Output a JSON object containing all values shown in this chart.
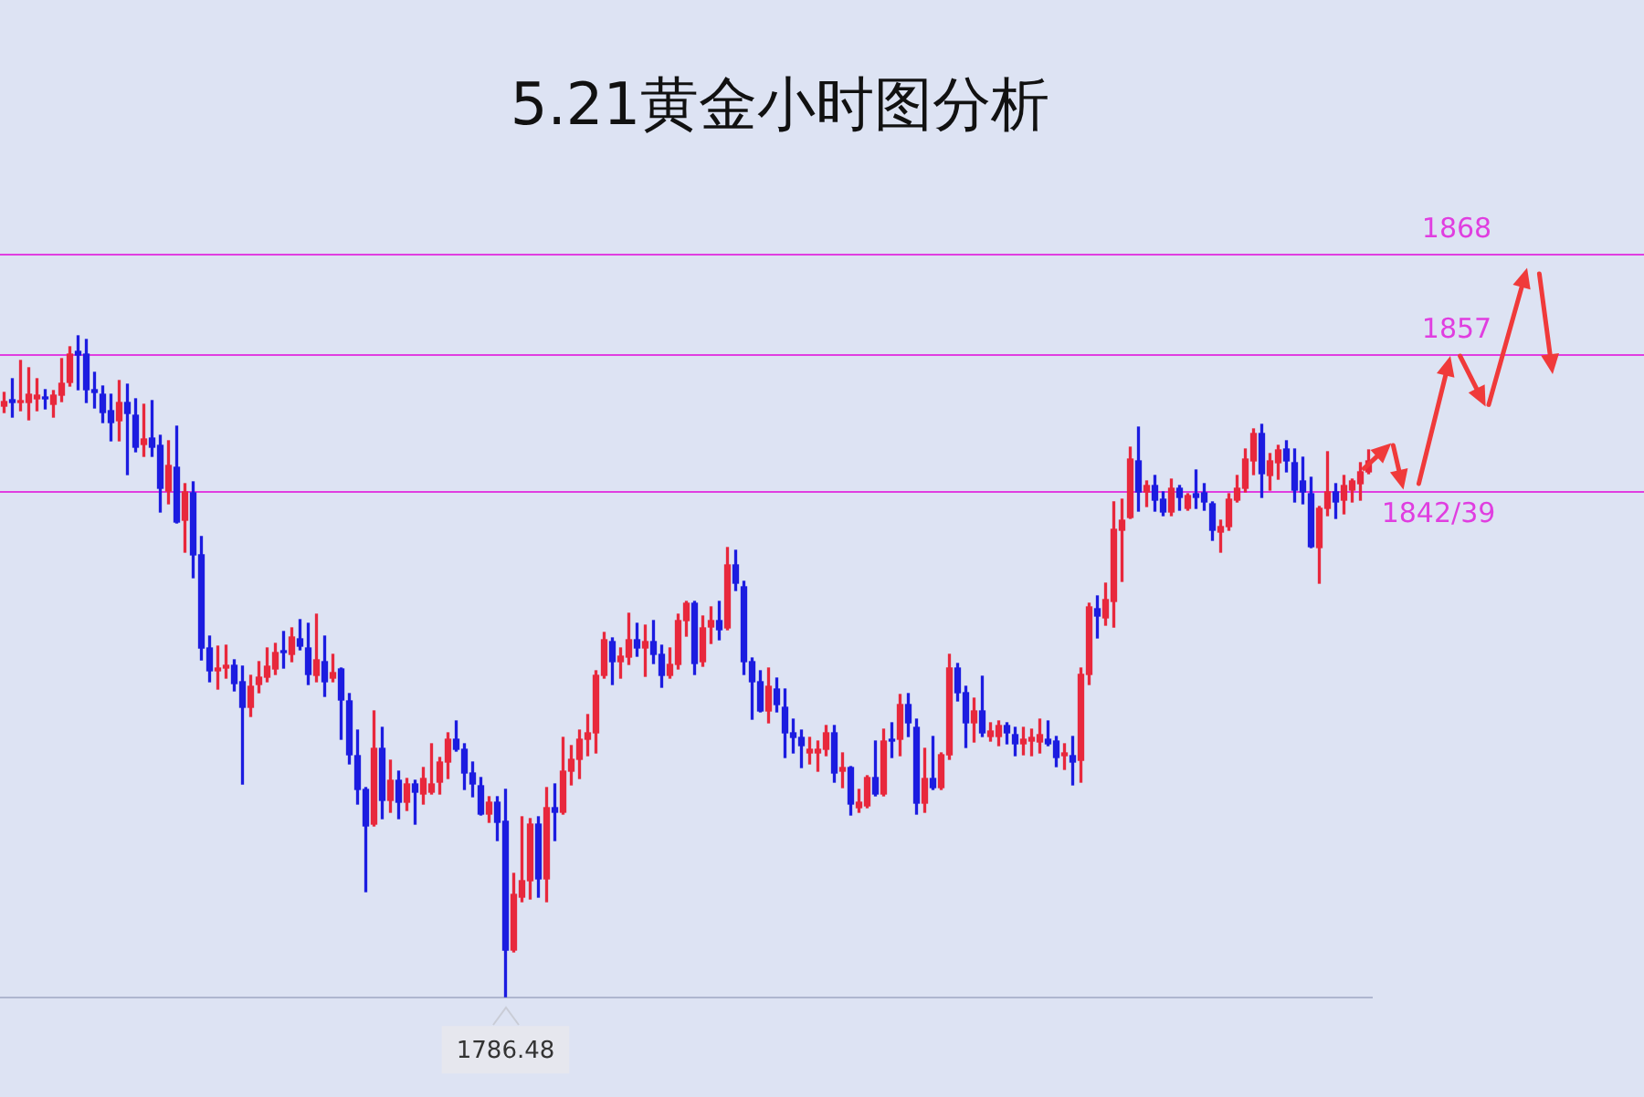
{
  "chart_data": {
    "type": "candlestick",
    "title": "5.21黄金小时图分析",
    "categories": [
      null,
      null,
      null,
      null,
      null,
      null,
      null,
      null,
      null,
      null,
      null,
      null,
      null,
      null,
      null,
      null,
      null,
      null,
      null,
      null,
      null,
      null,
      null,
      null,
      null,
      null,
      null,
      null,
      null,
      null,
      null,
      null,
      null,
      null,
      null,
      null,
      null,
      null,
      null,
      null,
      null,
      null,
      null,
      null,
      null,
      null,
      null,
      null,
      null,
      null,
      null,
      null,
      null,
      null,
      null,
      null,
      null,
      null,
      null,
      null,
      null,
      null,
      null,
      null,
      null,
      null,
      null,
      null,
      null,
      null,
      null,
      null,
      null,
      null,
      null,
      null,
      null,
      null,
      null,
      null,
      null,
      null,
      null,
      null,
      null,
      null,
      null,
      null,
      null,
      null,
      null,
      null,
      null,
      null,
      null,
      null,
      null,
      null,
      null,
      null,
      null,
      null,
      null,
      null,
      null,
      null,
      null,
      null,
      null,
      null,
      null,
      null,
      null,
      null,
      null,
      null,
      null,
      null,
      null,
      null,
      null,
      null,
      null,
      null,
      null,
      null,
      null,
      null,
      null,
      null,
      null,
      null,
      null,
      null,
      null,
      null,
      null,
      null,
      null,
      null,
      null,
      null,
      null,
      null,
      null,
      null,
      null,
      null,
      null,
      null,
      null,
      null,
      null,
      null,
      null,
      null,
      null,
      null,
      null,
      null,
      null,
      null,
      null,
      null,
      null,
      null,
      null
    ],
    "ohlc": [
      [
        1851.2,
        1852.7,
        1850.5,
        1851.7
      ],
      [
        1851.9,
        1854.2,
        1850.0,
        1851.6
      ],
      [
        1851.6,
        1856.2,
        1850.7,
        1851.8
      ],
      [
        1851.6,
        1855.4,
        1849.7,
        1852.5
      ],
      [
        1852.0,
        1854.2,
        1850.7,
        1852.4
      ],
      [
        1852.2,
        1853.0,
        1850.9,
        1852.0
      ],
      [
        1851.4,
        1852.9,
        1850.0,
        1852.4
      ],
      [
        1852.4,
        1856.4,
        1851.7,
        1853.7
      ],
      [
        1853.8,
        1857.7,
        1853.4,
        1856.9
      ],
      [
        1857.2,
        1858.9,
        1853.0,
        1856.8
      ],
      [
        1856.9,
        1858.5,
        1851.6,
        1853.0
      ],
      [
        1853.0,
        1854.9,
        1851.0,
        1852.7
      ],
      [
        1852.5,
        1853.4,
        1849.4,
        1850.5
      ],
      [
        1850.7,
        1852.5,
        1847.4,
        1849.4
      ],
      [
        1849.6,
        1854.0,
        1847.4,
        1851.6
      ],
      [
        1851.6,
        1853.6,
        1843.7,
        1850.4
      ],
      [
        1850.2,
        1852.0,
        1846.2,
        1846.7
      ],
      [
        1847.0,
        1851.4,
        1845.7,
        1847.6
      ],
      [
        1847.7,
        1851.8,
        1845.7,
        1846.7
      ],
      [
        1846.9,
        1848.0,
        1839.6,
        1842.2
      ],
      [
        1841.9,
        1847.4,
        1840.5,
        1844.7
      ],
      [
        1844.5,
        1849.0,
        1838.4,
        1838.5
      ],
      [
        1838.7,
        1842.7,
        1835.2,
        1841.8
      ],
      [
        1841.7,
        1842.9,
        1832.4,
        1834.9
      ],
      [
        1834.9,
        1836.9,
        1823.4,
        1824.7
      ],
      [
        1824.7,
        1826.0,
        1821.0,
        1822.2
      ],
      [
        1822.2,
        1824.9,
        1820.2,
        1822.5
      ],
      [
        1822.5,
        1825.0,
        1821.4,
        1822.8
      ],
      [
        1822.8,
        1823.4,
        1820.0,
        1820.8
      ],
      [
        1821.0,
        1822.7,
        1809.8,
        1818.2
      ],
      [
        1818.2,
        1821.7,
        1817.2,
        1820.5
      ],
      [
        1820.7,
        1823.2,
        1819.8,
        1821.5
      ],
      [
        1821.5,
        1824.7,
        1821.0,
        1822.7
      ],
      [
        1822.4,
        1825.2,
        1821.8,
        1824.2
      ],
      [
        1824.4,
        1826.5,
        1822.5,
        1824.2
      ],
      [
        1824.0,
        1826.9,
        1823.2,
        1825.9
      ],
      [
        1825.7,
        1827.8,
        1824.5,
        1824.9
      ],
      [
        1824.7,
        1827.4,
        1820.7,
        1821.8
      ],
      [
        1821.7,
        1828.4,
        1821.0,
        1823.4
      ],
      [
        1823.2,
        1826.0,
        1819.4,
        1821.0
      ],
      [
        1821.4,
        1824.0,
        1821.0,
        1822.0
      ],
      [
        1822.4,
        1822.5,
        1814.7,
        1819.0
      ],
      [
        1818.9,
        1819.7,
        1812.0,
        1813.0
      ],
      [
        1812.9,
        1815.7,
        1807.6,
        1809.2
      ],
      [
        1809.2,
        1809.4,
        1798.0,
        1805.2
      ],
      [
        1805.4,
        1817.8,
        1805.2,
        1813.7
      ],
      [
        1813.7,
        1816.0,
        1806.0,
        1808.0
      ],
      [
        1808.0,
        1812.4,
        1806.7,
        1810.2
      ],
      [
        1810.2,
        1811.2,
        1806.0,
        1807.8
      ],
      [
        1807.8,
        1810.4,
        1806.9,
        1809.8
      ],
      [
        1809.8,
        1810.2,
        1805.4,
        1808.9
      ],
      [
        1808.7,
        1811.6,
        1807.6,
        1810.4
      ],
      [
        1808.9,
        1814.2,
        1808.7,
        1809.8
      ],
      [
        1810.0,
        1812.7,
        1808.7,
        1812.2
      ],
      [
        1812.2,
        1815.4,
        1810.4,
        1814.7
      ],
      [
        1814.7,
        1816.7,
        1813.4,
        1813.6
      ],
      [
        1813.6,
        1814.2,
        1809.2,
        1811.0
      ],
      [
        1811.0,
        1812.2,
        1808.4,
        1809.8
      ],
      [
        1809.6,
        1810.5,
        1806.4,
        1806.5
      ],
      [
        1806.5,
        1808.4,
        1805.6,
        1807.8
      ],
      [
        1807.8,
        1808.4,
        1803.6,
        1805.6
      ],
      [
        1805.7,
        1809.2,
        1786.48,
        1791.6
      ],
      [
        1791.6,
        1800.0,
        1791.4,
        1797.7
      ],
      [
        1797.4,
        1806.2,
        1796.9,
        1799.2
      ],
      [
        1799.2,
        1806.0,
        1797.2,
        1805.4
      ],
      [
        1805.4,
        1806.2,
        1797.4,
        1799.4
      ],
      [
        1799.4,
        1809.4,
        1796.9,
        1807.2
      ],
      [
        1807.2,
        1809.8,
        1803.6,
        1806.7
      ],
      [
        1806.7,
        1814.9,
        1806.5,
        1811.2
      ],
      [
        1811.2,
        1814.0,
        1809.7,
        1812.5
      ],
      [
        1812.5,
        1815.7,
        1810.4,
        1814.7
      ],
      [
        1814.7,
        1817.4,
        1812.9,
        1815.4
      ],
      [
        1815.4,
        1822.2,
        1813.2,
        1821.7
      ],
      [
        1821.7,
        1826.4,
        1821.4,
        1825.6
      ],
      [
        1825.4,
        1825.8,
        1820.7,
        1823.2
      ],
      [
        1823.2,
        1824.7,
        1821.4,
        1823.8
      ],
      [
        1823.7,
        1828.5,
        1822.9,
        1825.6
      ],
      [
        1825.6,
        1827.4,
        1823.8,
        1824.7
      ],
      [
        1824.7,
        1827.2,
        1821.6,
        1825.4
      ],
      [
        1825.4,
        1827.7,
        1823.0,
        1824.0
      ],
      [
        1824.0,
        1825.0,
        1820.4,
        1821.7
      ],
      [
        1821.7,
        1824.7,
        1821.4,
        1822.9
      ],
      [
        1822.9,
        1828.4,
        1822.4,
        1827.7
      ],
      [
        1827.7,
        1829.8,
        1826.0,
        1829.6
      ],
      [
        1829.6,
        1829.8,
        1821.8,
        1823.0
      ],
      [
        1823.2,
        1828.2,
        1822.7,
        1826.9
      ],
      [
        1827.0,
        1829.2,
        1825.2,
        1827.7
      ],
      [
        1827.7,
        1829.8,
        1825.6,
        1826.7
      ],
      [
        1826.9,
        1835.7,
        1826.7,
        1833.8
      ],
      [
        1833.8,
        1835.4,
        1831.0,
        1831.8
      ],
      [
        1831.4,
        1832.0,
        1821.8,
        1823.2
      ],
      [
        1823.2,
        1823.6,
        1816.9,
        1821.0
      ],
      [
        1821.0,
        1822.2,
        1817.7,
        1817.8
      ],
      [
        1817.8,
        1822.5,
        1816.5,
        1820.5
      ],
      [
        1820.2,
        1821.4,
        1817.7,
        1818.5
      ],
      [
        1818.2,
        1820.2,
        1812.7,
        1815.4
      ],
      [
        1815.4,
        1816.9,
        1813.2,
        1814.9
      ],
      [
        1814.9,
        1815.7,
        1811.6,
        1814.0
      ],
      [
        1813.2,
        1814.9,
        1812.0,
        1813.6
      ],
      [
        1813.2,
        1814.5,
        1811.2,
        1813.6
      ],
      [
        1813.6,
        1816.2,
        1812.9,
        1815.4
      ],
      [
        1815.4,
        1816.2,
        1810.0,
        1811.0
      ],
      [
        1811.2,
        1813.2,
        1809.4,
        1811.6
      ],
      [
        1811.6,
        1811.7,
        1806.4,
        1807.6
      ],
      [
        1807.2,
        1809.2,
        1806.7,
        1807.8
      ],
      [
        1807.4,
        1810.7,
        1807.2,
        1810.5
      ],
      [
        1810.5,
        1814.5,
        1808.5,
        1808.7
      ],
      [
        1808.7,
        1815.8,
        1808.5,
        1814.5
      ],
      [
        1814.7,
        1816.5,
        1812.7,
        1814.5
      ],
      [
        1814.7,
        1819.6,
        1812.9,
        1818.5
      ],
      [
        1818.5,
        1819.7,
        1815.0,
        1816.5
      ],
      [
        1816.0,
        1816.9,
        1806.5,
        1807.7
      ],
      [
        1807.7,
        1813.7,
        1806.7,
        1810.4
      ],
      [
        1810.4,
        1815.0,
        1809.2,
        1809.4
      ],
      [
        1809.4,
        1813.2,
        1809.2,
        1813.0
      ],
      [
        1813.0,
        1824.0,
        1812.5,
        1822.5
      ],
      [
        1822.5,
        1823.0,
        1818.9,
        1819.8
      ],
      [
        1819.8,
        1820.5,
        1813.8,
        1816.5
      ],
      [
        1816.5,
        1819.2,
        1814.4,
        1817.8
      ],
      [
        1817.8,
        1821.6,
        1815.0,
        1815.4
      ],
      [
        1815.0,
        1816.5,
        1814.5,
        1815.6
      ],
      [
        1815.0,
        1816.7,
        1814.0,
        1816.2
      ],
      [
        1816.2,
        1816.5,
        1814.2,
        1815.4
      ],
      [
        1815.2,
        1816.0,
        1812.9,
        1814.2
      ],
      [
        1814.2,
        1816.0,
        1813.0,
        1814.7
      ],
      [
        1814.5,
        1815.8,
        1812.9,
        1814.9
      ],
      [
        1814.4,
        1816.9,
        1813.2,
        1815.2
      ],
      [
        1814.7,
        1816.7,
        1814.0,
        1814.2
      ],
      [
        1814.5,
        1815.0,
        1811.7,
        1812.7
      ],
      [
        1812.9,
        1814.2,
        1811.4,
        1813.2
      ],
      [
        1812.9,
        1815.0,
        1809.7,
        1812.2
      ],
      [
        1812.4,
        1822.5,
        1810.0,
        1821.8
      ],
      [
        1821.8,
        1829.6,
        1820.7,
        1829.2
      ],
      [
        1829.0,
        1830.4,
        1825.8,
        1828.2
      ],
      [
        1828.0,
        1831.8,
        1827.2,
        1830.0
      ],
      [
        1829.8,
        1840.7,
        1827.0,
        1837.7
      ],
      [
        1837.6,
        1841.0,
        1832.0,
        1838.7
      ],
      [
        1839.0,
        1846.7,
        1838.9,
        1845.4
      ],
      [
        1845.2,
        1848.9,
        1839.7,
        1841.8
      ],
      [
        1841.8,
        1843.0,
        1840.2,
        1842.5
      ],
      [
        1842.5,
        1843.6,
        1839.7,
        1840.9
      ],
      [
        1841.0,
        1841.8,
        1839.2,
        1839.6
      ],
      [
        1839.6,
        1843.2,
        1839.2,
        1842.2
      ],
      [
        1842.2,
        1842.5,
        1839.8,
        1841.2
      ],
      [
        1840.0,
        1841.6,
        1839.8,
        1841.4
      ],
      [
        1841.6,
        1844.2,
        1840.0,
        1841.2
      ],
      [
        1841.7,
        1842.7,
        1839.8,
        1840.7
      ],
      [
        1840.5,
        1840.7,
        1836.5,
        1837.6
      ],
      [
        1837.4,
        1838.7,
        1835.2,
        1838.0
      ],
      [
        1838.0,
        1841.6,
        1837.6,
        1841.0
      ],
      [
        1840.9,
        1843.6,
        1840.7,
        1842.2
      ],
      [
        1842.2,
        1846.5,
        1841.8,
        1845.4
      ],
      [
        1845.2,
        1848.7,
        1843.7,
        1848.2
      ],
      [
        1848.2,
        1849.2,
        1841.2,
        1843.8
      ],
      [
        1843.6,
        1846.0,
        1842.0,
        1845.2
      ],
      [
        1845.0,
        1846.9,
        1843.2,
        1846.4
      ],
      [
        1846.5,
        1847.4,
        1844.0,
        1845.2
      ],
      [
        1845.0,
        1846.5,
        1840.7,
        1842.0
      ],
      [
        1843.0,
        1845.6,
        1840.5,
        1841.8
      ],
      [
        1841.6,
        1843.4,
        1835.7,
        1835.8
      ],
      [
        1835.7,
        1840.2,
        1831.8,
        1840.0
      ],
      [
        1840.0,
        1846.2,
        1839.2,
        1841.8
      ],
      [
        1841.8,
        1842.7,
        1838.9,
        1840.7
      ],
      [
        1840.9,
        1843.6,
        1839.4,
        1842.5
      ],
      [
        1842.0,
        1843.2,
        1840.7,
        1843.0
      ],
      [
        1842.7,
        1845.0,
        1840.9,
        1844.0
      ],
      [
        1844.0,
        1846.4,
        1843.8,
        1845.2
      ]
    ],
    "colors": [
      "#e8283c",
      "#1c1ce0",
      "#e8283c",
      "#e8283c",
      "#e8283c",
      "#1c1ce0",
      "#e8283c",
      "#e8283c",
      "#e8283c",
      "#1c1ce0",
      "#1c1ce0",
      "#1c1ce0",
      "#1c1ce0",
      "#1c1ce0",
      "#e8283c",
      "#1c1ce0",
      "#1c1ce0",
      "#e8283c",
      "#1c1ce0",
      "#1c1ce0",
      "#e8283c",
      "#1c1ce0",
      "#e8283c",
      "#1c1ce0",
      "#1c1ce0",
      "#1c1ce0",
      "#e8283c",
      "#e8283c",
      "#1c1ce0",
      "#1c1ce0",
      "#e8283c",
      "#e8283c",
      "#e8283c",
      "#e8283c",
      "#1c1ce0",
      "#e8283c",
      "#1c1ce0",
      "#1c1ce0",
      "#e8283c",
      "#1c1ce0",
      "#e8283c",
      "#1c1ce0",
      "#1c1ce0",
      "#1c1ce0",
      "#1c1ce0",
      "#e8283c",
      "#1c1ce0",
      "#e8283c",
      "#1c1ce0",
      "#e8283c",
      "#1c1ce0",
      "#e8283c",
      "#e8283c",
      "#e8283c",
      "#e8283c",
      "#1c1ce0",
      "#1c1ce0",
      "#1c1ce0",
      "#1c1ce0",
      "#e8283c",
      "#1c1ce0",
      "#1c1ce0",
      "#e8283c",
      "#e8283c",
      "#e8283c",
      "#1c1ce0",
      "#e8283c",
      "#1c1ce0",
      "#e8283c",
      "#e8283c",
      "#e8283c",
      "#e8283c",
      "#e8283c",
      "#e8283c",
      "#1c1ce0",
      "#e8283c",
      "#e8283c",
      "#1c1ce0",
      "#e8283c",
      "#1c1ce0",
      "#1c1ce0",
      "#e8283c",
      "#e8283c",
      "#e8283c",
      "#1c1ce0",
      "#e8283c",
      "#e8283c",
      "#1c1ce0",
      "#e8283c",
      "#1c1ce0",
      "#1c1ce0",
      "#1c1ce0",
      "#1c1ce0",
      "#e8283c",
      "#1c1ce0",
      "#1c1ce0",
      "#1c1ce0",
      "#1c1ce0",
      "#e8283c",
      "#e8283c",
      "#e8283c",
      "#1c1ce0",
      "#e8283c",
      "#1c1ce0",
      "#e8283c",
      "#e8283c",
      "#1c1ce0",
      "#e8283c",
      "#1c1ce0",
      "#e8283c",
      "#1c1ce0",
      "#1c1ce0",
      "#e8283c",
      "#1c1ce0",
      "#e8283c",
      "#e8283c",
      "#1c1ce0",
      "#1c1ce0",
      "#e8283c",
      "#1c1ce0",
      "#e8283c",
      "#e8283c",
      "#1c1ce0",
      "#1c1ce0",
      "#e8283c",
      "#e8283c",
      "#e8283c",
      "#1c1ce0",
      "#1c1ce0",
      "#e8283c",
      "#1c1ce0",
      "#e8283c",
      "#e8283c",
      "#1c1ce0",
      "#e8283c",
      "#e8283c",
      "#e8283c",
      "#e8283c",
      "#1c1ce0",
      "#e8283c",
      "#1c1ce0",
      "#1c1ce0",
      "#e8283c",
      "#1c1ce0",
      "#e8283c",
      "#1c1ce0",
      "#1c1ce0",
      "#1c1ce0",
      "#e8283c",
      "#e8283c",
      "#e8283c",
      "#e8283c",
      "#e8283c",
      "#1c1ce0",
      "#e8283c",
      "#e8283c",
      "#1c1ce0",
      "#1c1ce0",
      "#1c1ce0",
      "#1c1ce0",
      "#e8283c",
      "#e8283c",
      "#1c1ce0",
      "#e8283c",
      "#e8283c",
      "#e8283c",
      "#e8283c"
    ],
    "ylim": [
      1786.48,
      1868
    ],
    "tick_labels": false,
    "ref_lines": [
      {
        "axis": "y",
        "value": 1868,
        "label": "1868",
        "color": "#e03ee0"
      },
      {
        "axis": "y",
        "value": 1857,
        "label": "1857",
        "color": "#e03ee0"
      },
      {
        "axis": "y",
        "value": 1842,
        "label": "1842/39",
        "color": "#e03ee0"
      }
    ],
    "annotations": [
      {
        "text": "1786.48",
        "y": 1786.48
      }
    ]
  }
}
